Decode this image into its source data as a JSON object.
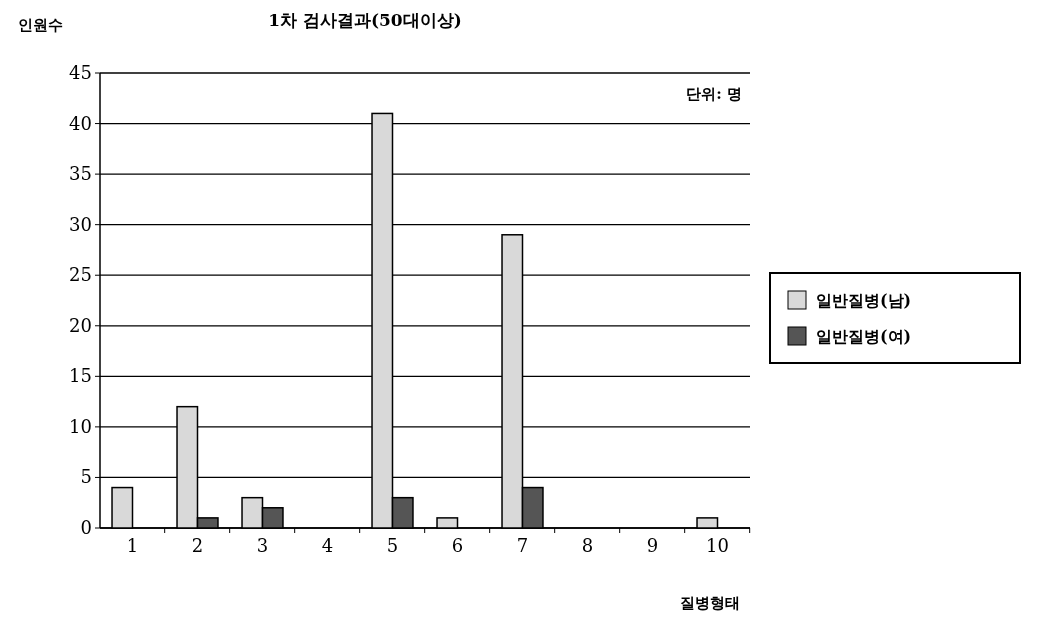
{
  "chart_data": {
    "type": "bar",
    "title": "1차 검사결과(50대이상)",
    "xlabel": "질병형태",
    "ylabel": "인원수",
    "annotations": [
      "단위: 명"
    ],
    "categories": [
      "1",
      "2",
      "3",
      "4",
      "5",
      "6",
      "7",
      "8",
      "9",
      "10"
    ],
    "series": [
      {
        "name": "일반질병(남)",
        "color": "#d9d9d9",
        "values": [
          4,
          12,
          3,
          0,
          41,
          1,
          29,
          0,
          0,
          1
        ]
      },
      {
        "name": "일반질병(여)",
        "color": "#555555",
        "values": [
          0,
          1,
          2,
          0,
          3,
          0,
          4,
          0,
          0,
          0
        ]
      }
    ],
    "ylim": [
      0,
      45
    ],
    "yticks": [
      0,
      5,
      10,
      15,
      20,
      25,
      30,
      35,
      40,
      45
    ],
    "grid": "y",
    "legend": "right"
  }
}
